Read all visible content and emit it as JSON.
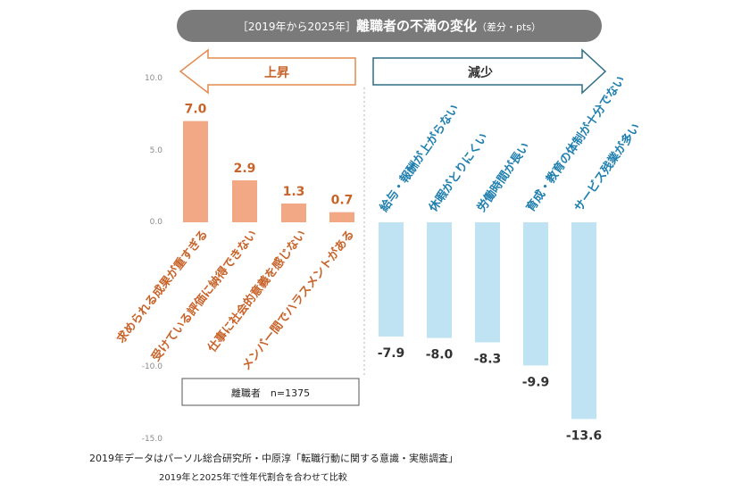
{
  "chart_data": {
    "type": "bar",
    "title_bracket": "［2019年から2025年］",
    "title_main": "離職者の不満の変化",
    "title_sub": "（差分・pts）",
    "ylim": [
      -15,
      10
    ],
    "yticks": [
      "10.0",
      "5.0",
      "0.0",
      "-10.0",
      "-15.0"
    ],
    "arrow_left_label": "上昇",
    "arrow_right_label": "減少",
    "series_increase": {
      "categories": [
        "求められる成果が重すぎる",
        "受けている評価に納得できない",
        "仕事に社会的意義を感じない",
        "メンバー間でハラスメントがある"
      ],
      "values": [
        7.0,
        2.9,
        1.3,
        0.7
      ],
      "labels": [
        "7.0",
        "2.9",
        "1.3",
        "0.7"
      ]
    },
    "series_decrease": {
      "categories": [
        "給与・報酬が上がらない",
        "休暇がとりにくい",
        "労働時間が長い",
        "育成・教育の体制が十分でない",
        "サービス残業が多い"
      ],
      "values": [
        -7.9,
        -8.0,
        -8.3,
        -9.9,
        -13.6
      ],
      "labels": [
        "-7.9",
        "-8.0",
        "-8.3",
        "-9.9",
        "-13.6"
      ]
    },
    "sample_label": "離職者　n=1375",
    "colors": {
      "increase": "#f2a884",
      "decrease": "#bfe3f3",
      "increase_text": "#c8642a",
      "decrease_text": "#1f7fae",
      "title_bg": "#7a7a7a"
    }
  },
  "footnotes": {
    "source": "2019年データはパーソル総合研究所・中原淳「転職行動に関する意識・実態調査」",
    "note": "2019年と2025年で性年代割合を合わせて比較"
  }
}
